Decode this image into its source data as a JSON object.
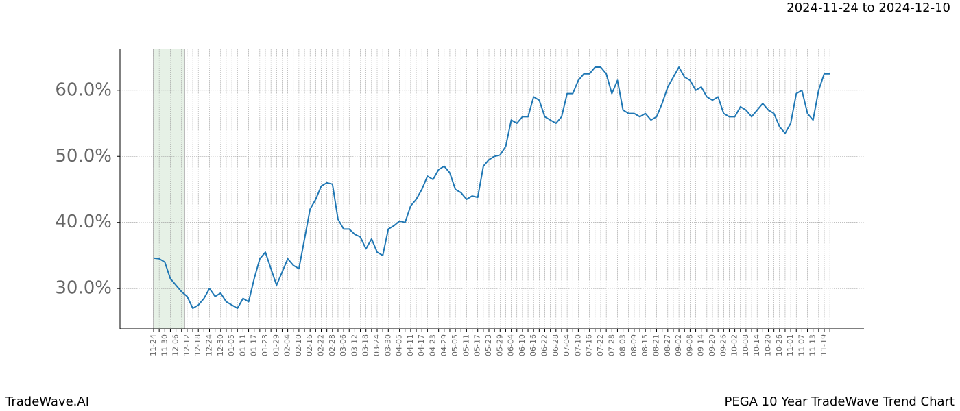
{
  "header": {
    "date_range": "2024-11-24 to 2024-12-10"
  },
  "footer": {
    "brand": "TradeWave.AI",
    "chart_name": "PEGA 10 Year TradeWave Trend Chart"
  },
  "chart_data": {
    "type": "line",
    "color": "#1f77b4",
    "grid": true,
    "categories": [
      "11-24",
      null,
      "11-30",
      null,
      "12-06",
      null,
      "12-12",
      null,
      "12-18",
      null,
      "12-24",
      null,
      "12-30",
      null,
      "01-05",
      null,
      "01-11",
      null,
      "01-17",
      null,
      "01-23",
      null,
      "01-29",
      null,
      "02-04",
      null,
      "02-10",
      null,
      "02-16",
      null,
      "02-22",
      null,
      "02-28",
      null,
      "03-06",
      null,
      "03-12",
      null,
      "03-18",
      null,
      "03-24",
      null,
      "03-30",
      null,
      "04-05",
      null,
      "04-11",
      null,
      "04-17",
      null,
      "04-23",
      null,
      "04-29",
      null,
      "05-05",
      null,
      "05-11",
      null,
      "05-17",
      null,
      "05-23",
      null,
      "05-29",
      null,
      "06-04",
      null,
      "06-10",
      null,
      "06-16",
      null,
      "06-22",
      null,
      "06-28",
      null,
      "07-04",
      null,
      "07-10",
      null,
      "07-16",
      null,
      "07-22",
      null,
      "07-28",
      null,
      "08-03",
      null,
      "08-09",
      null,
      "08-15",
      null,
      "08-21",
      null,
      "08-27",
      null,
      "09-02",
      null,
      "09-08",
      null,
      "09-14",
      null,
      "09-20",
      null,
      "09-26",
      null,
      "10-02",
      null,
      "10-08",
      null,
      "10-14",
      null,
      "10-20",
      null,
      "10-26",
      null,
      "11-01",
      null,
      "11-07",
      null,
      "11-13",
      null,
      "11-19",
      null
    ],
    "values": [
      34.6,
      34.5,
      34.0,
      31.5,
      30.5,
      29.5,
      28.8,
      27.0,
      27.5,
      28.5,
      30.0,
      28.8,
      29.3,
      28.0,
      27.5,
      27.0,
      28.5,
      28.0,
      31.5,
      34.5,
      35.5,
      33.0,
      30.5,
      32.5,
      34.5,
      33.5,
      33.0,
      37.5,
      42.0,
      43.5,
      45.5,
      46.0,
      45.8,
      40.5,
      39.0,
      39.0,
      38.2,
      37.8,
      36.0,
      37.5,
      35.5,
      35.0,
      39.0,
      39.5,
      40.2,
      40.0,
      42.5,
      43.5,
      45.0,
      47.0,
      46.5,
      48.0,
      48.5,
      47.5,
      45.0,
      44.5,
      43.5,
      44.0,
      43.8,
      48.5,
      49.5,
      50.0,
      50.2,
      51.5,
      55.5,
      55.0,
      56.0,
      56.0,
      59.0,
      58.5,
      56.0,
      55.5,
      55.0,
      56.0,
      59.5,
      59.5,
      61.5,
      62.5,
      62.5,
      63.5,
      63.5,
      62.5,
      59.5,
      61.5,
      57.0,
      56.5,
      56.5,
      56.0,
      56.5,
      55.5,
      56.0,
      58.0,
      60.5,
      62.0,
      63.5,
      62.0,
      61.5,
      60.0,
      60.5,
      59.0,
      58.5,
      59.0,
      56.5,
      56.0,
      56.0,
      57.5,
      57.0,
      56.0,
      57.0,
      58.0,
      57.0,
      56.5,
      54.5,
      53.5,
      55.0,
      59.5,
      60.0,
      56.5,
      55.5,
      60.0,
      62.5,
      62.5
    ],
    "ylim": [
      23.9,
      66.2
    ],
    "yticks": [
      {
        "value": 30,
        "label": "30.0%"
      },
      {
        "value": 40,
        "label": "40.0%"
      },
      {
        "value": 50,
        "label": "50.0%"
      },
      {
        "value": 60,
        "label": "60.0%"
      }
    ]
  }
}
